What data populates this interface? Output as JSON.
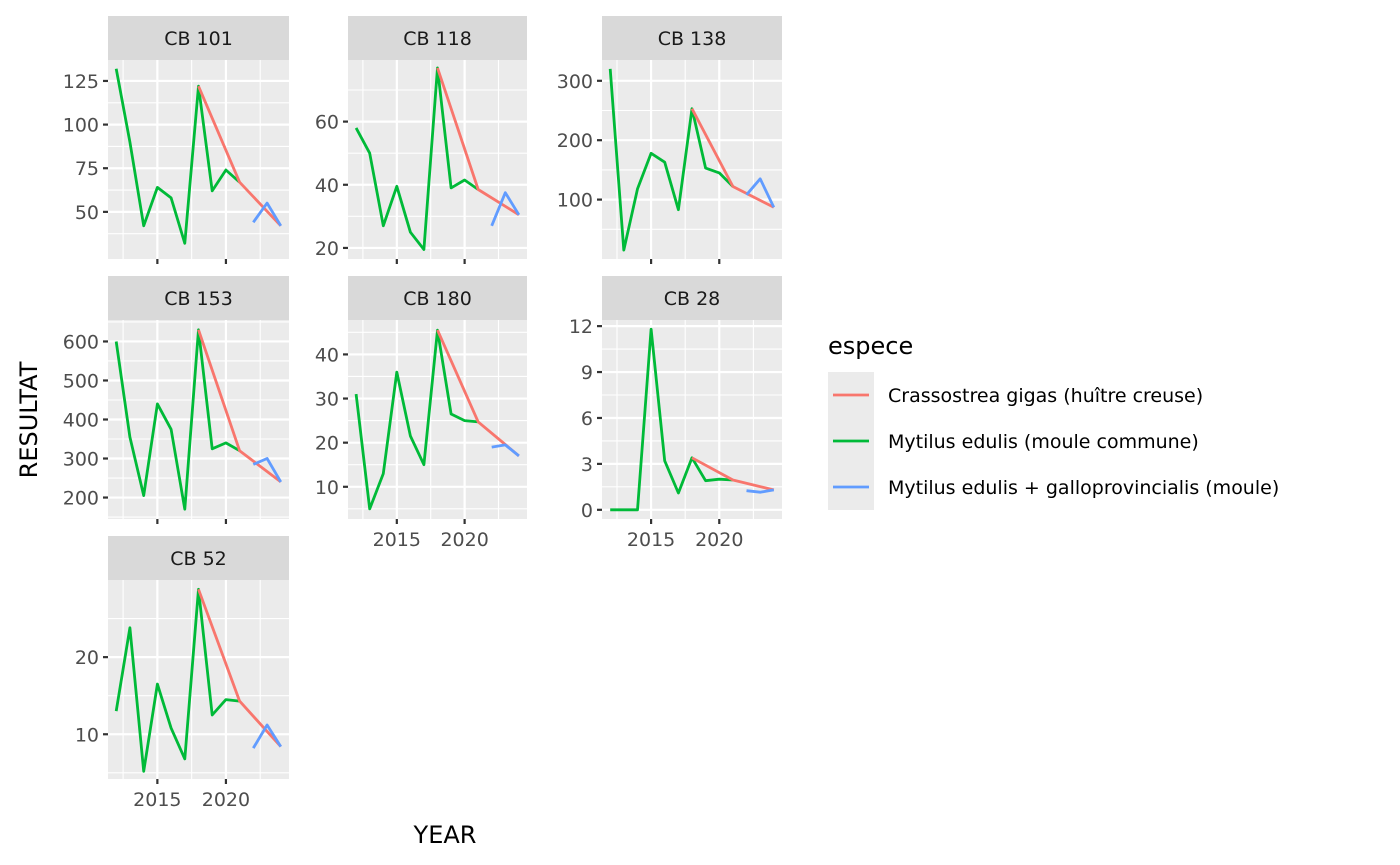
{
  "chart_data": {
    "type": "line",
    "facet_by": "station",
    "xlabel": "YEAR",
    "ylabel": "RESULTAT",
    "x_ticks": [
      2015,
      2020
    ],
    "x_range": [
      2011.4,
      2024.6
    ],
    "grid": true,
    "legend": {
      "title": "espece",
      "placement": "right",
      "entries": [
        {
          "name": "Crassostrea gigas (huître creuse)",
          "color": "#F8766D"
        },
        {
          "name": "Mytilus edulis (moule commune)",
          "color": "#00BA38"
        },
        {
          "name": "Mytilus edulis + galloprovincialis (moule)",
          "color": "#619CFF"
        }
      ]
    },
    "panels": [
      {
        "title": "CB 101",
        "ylim": [
          23,
          137
        ],
        "y_ticks": [
          50,
          75,
          100,
          125
        ],
        "series": [
          {
            "name": "Mytilus edulis (moule commune)",
            "x": [
              2012,
              2013,
              2014,
              2015,
              2016,
              2017,
              2018,
              2019,
              2020,
              2021
            ],
            "y": [
              132,
              90,
              42,
              64,
              58,
              32,
              122,
              62,
              74,
              67
            ]
          },
          {
            "name": "Crassostrea gigas (huître creuse)",
            "x": [
              2018,
              2021,
              2024
            ],
            "y": [
              122,
              67,
              42
            ]
          },
          {
            "name": "Mytilus edulis + galloprovincialis (moule)",
            "x": [
              2022,
              2023,
              2024
            ],
            "y": [
              44,
              55,
              42
            ]
          }
        ]
      },
      {
        "title": "CB 118",
        "ylim": [
          16.5,
          79.5
        ],
        "y_ticks": [
          20,
          40,
          60
        ],
        "series": [
          {
            "name": "Mytilus edulis (moule commune)",
            "x": [
              2012,
              2013,
              2014,
              2015,
              2016,
              2017,
              2018,
              2019,
              2020,
              2021
            ],
            "y": [
              58,
              50,
              27,
              39.5,
              25,
              19.5,
              77,
              39,
              41.5,
              38.5
            ]
          },
          {
            "name": "Crassostrea gigas (huître creuse)",
            "x": [
              2018,
              2021,
              2024
            ],
            "y": [
              77,
              38.5,
              30.5
            ]
          },
          {
            "name": "Mytilus edulis + galloprovincialis (moule)",
            "x": [
              2022,
              2023,
              2024
            ],
            "y": [
              27,
              37.5,
              30.5
            ]
          }
        ]
      },
      {
        "title": "CB 138",
        "ylim": [
          0,
          335
        ],
        "y_ticks": [
          100,
          200,
          300
        ],
        "series": [
          {
            "name": "Mytilus edulis (moule commune)",
            "x": [
              2012,
              2013,
              2014,
              2015,
              2016,
              2017,
              2018,
              2019,
              2020,
              2021
            ],
            "y": [
              320,
              15,
              118,
              178,
              163,
              83,
              253,
              153,
              145,
              122
            ]
          },
          {
            "name": "Crassostrea gigas (huître creuse)",
            "x": [
              2018,
              2021,
              2024
            ],
            "y": [
              253,
              122,
              87
            ]
          },
          {
            "name": "Mytilus edulis + galloprovincialis (moule)",
            "x": [
              2022,
              2023,
              2024
            ],
            "y": [
              108,
              135,
              87
            ]
          }
        ]
      },
      {
        "title": "CB 153",
        "ylim": [
          145,
          655
        ],
        "y_ticks": [
          200,
          300,
          400,
          500,
          600
        ],
        "series": [
          {
            "name": "Mytilus edulis (moule commune)",
            "x": [
              2012,
              2013,
              2014,
              2015,
              2016,
              2017,
              2018,
              2019,
              2020,
              2021
            ],
            "y": [
              600,
              355,
              205,
              440,
              375,
              170,
              630,
              325,
              340,
              320
            ]
          },
          {
            "name": "Crassostrea gigas (huître creuse)",
            "x": [
              2018,
              2021,
              2024
            ],
            "y": [
              630,
              320,
              240
            ]
          },
          {
            "name": "Mytilus edulis + galloprovincialis (moule)",
            "x": [
              2022,
              2023,
              2024
            ],
            "y": [
              285,
              300,
              240
            ]
          }
        ]
      },
      {
        "title": "CB 180",
        "ylim": [
          2.7,
          47.8
        ],
        "y_ticks": [
          10,
          20,
          30,
          40
        ],
        "series": [
          {
            "name": "Mytilus edulis (moule commune)",
            "x": [
              2012,
              2013,
              2014,
              2015,
              2016,
              2017,
              2018,
              2019,
              2020,
              2021
            ],
            "y": [
              31,
              5,
              13,
              36,
              21.5,
              15,
              45.5,
              26.5,
              25,
              24.7
            ]
          },
          {
            "name": "Crassostrea gigas (huître creuse)",
            "x": [
              2018,
              2021,
              2024
            ],
            "y": [
              45.5,
              24.7,
              17
            ]
          },
          {
            "name": "Mytilus edulis + galloprovincialis (moule)",
            "x": [
              2022,
              2023,
              2024
            ],
            "y": [
              19,
              19.5,
              17
            ]
          }
        ]
      },
      {
        "title": "CB 28",
        "ylim": [
          -0.6,
          12.4
        ],
        "y_ticks": [
          0,
          3,
          6,
          9,
          12
        ],
        "series": [
          {
            "name": "Mytilus edulis (moule commune)",
            "x": [
              2012,
              2013,
              2014,
              2015,
              2016,
              2017,
              2018,
              2019,
              2020,
              2021
            ],
            "y": [
              0,
              0,
              0,
              11.8,
              3.2,
              1.1,
              3.4,
              1.9,
              2,
              1.95
            ]
          },
          {
            "name": "Crassostrea gigas (huître creuse)",
            "x": [
              2018,
              2021,
              2024
            ],
            "y": [
              3.4,
              1.95,
              1.3
            ]
          },
          {
            "name": "Mytilus edulis + galloprovincialis (moule)",
            "x": [
              2022,
              2023,
              2024
            ],
            "y": [
              1.25,
              1.15,
              1.3
            ]
          }
        ]
      },
      {
        "title": "CB 52",
        "ylim": [
          4.2,
          30
        ],
        "y_ticks": [
          10,
          20
        ],
        "series": [
          {
            "name": "Mytilus edulis (moule commune)",
            "x": [
              2012,
              2013,
              2014,
              2015,
              2016,
              2017,
              2018,
              2019,
              2020,
              2021
            ],
            "y": [
              13,
              23.8,
              5.2,
              16.5,
              10.8,
              6.8,
              28.8,
              12.5,
              14.5,
              14.3
            ]
          },
          {
            "name": "Crassostrea gigas (huître creuse)",
            "x": [
              2018,
              2021,
              2024
            ],
            "y": [
              28.8,
              14.3,
              8.4
            ]
          },
          {
            "name": "Mytilus edulis + galloprovincialis (moule)",
            "x": [
              2022,
              2023,
              2024
            ],
            "y": [
              8.2,
              11.2,
              8.4
            ]
          }
        ]
      }
    ]
  }
}
